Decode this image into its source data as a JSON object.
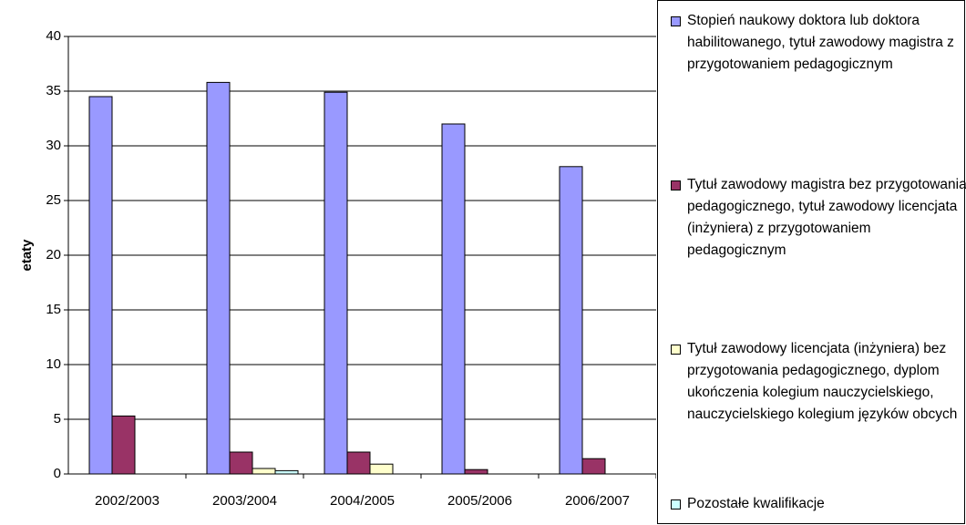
{
  "chart_data": {
    "type": "bar",
    "y_label": "etaty",
    "categories": [
      "2002/2003",
      "2003/2004",
      "2004/2005",
      "2005/2006",
      "2006/2007"
    ],
    "series": [
      {
        "name": "Stopień naukowy doktora lub doktora habilitowanego, tytuł zawodowy magistra z przygotowaniem pedagogicznym",
        "color": "#9999ff",
        "values": [
          34.5,
          35.8,
          34.9,
          32.0,
          28.1
        ]
      },
      {
        "name": "Tytuł zawodowy magistra bez przygotowania pedagogicznego, tytuł zawodowy licencjata (inżyniera) z przygotowaniem pedagogicznym",
        "color": "#993366",
        "values": [
          5.3,
          2.0,
          2.0,
          0.4,
          1.4
        ]
      },
      {
        "name": "Tytuł zawodowy licencjata (inżyniera) bez przygotowania pedagogicznego, dyplom ukończenia kolegium nauczycielskiego, nauczycielskiego kolegium języków obcych",
        "color": "#ffffcc",
        "values": [
          0,
          0.5,
          0.9,
          0,
          0
        ]
      },
      {
        "name": "Pozostałe kwalifikacje",
        "color": "#ccffff",
        "values": [
          0,
          0.3,
          0,
          0,
          0
        ]
      }
    ],
    "ylim": [
      0,
      40
    ],
    "yticks": [
      0,
      5,
      10,
      15,
      20,
      25,
      30,
      35,
      40
    ],
    "grid": true,
    "legend": "right"
  }
}
